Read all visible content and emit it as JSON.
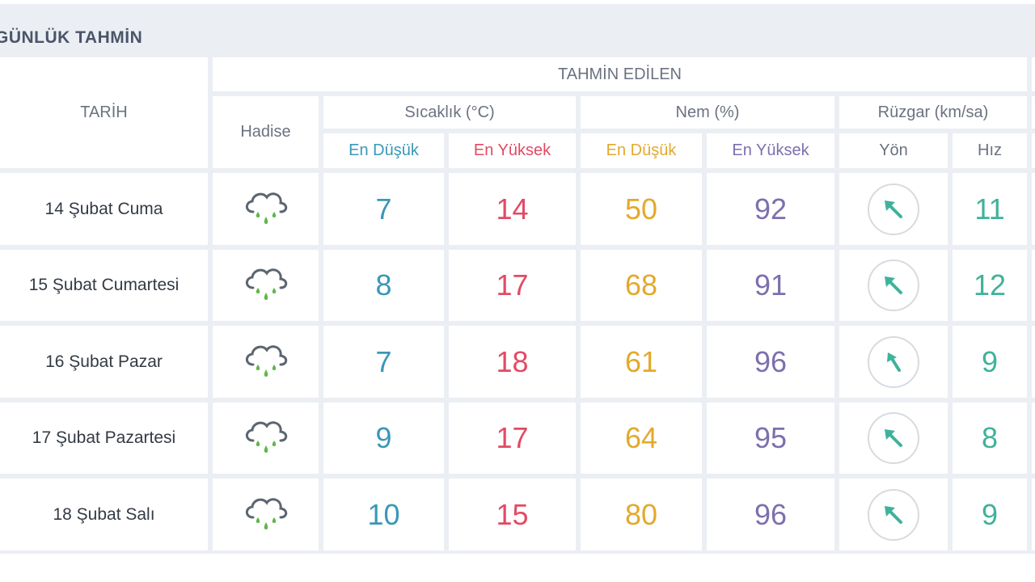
{
  "section_title": "GÜNLÜK TAHMİN",
  "headers": {
    "date": "TARİH",
    "forecast_group": "TAHMİN EDİLEN",
    "event": "Hadise",
    "temperature": "Sıcaklık (°C)",
    "humidity": "Nem (%)",
    "wind": "Rüzgar (km/sa)",
    "temp_min": "En Düşük",
    "temp_max": "En Yüksek",
    "hum_min": "En Düşük",
    "hum_max": "En Yüksek",
    "wind_dir": "Yön",
    "wind_speed": "Hız"
  },
  "colors": {
    "temp_min": "#3a97b8",
    "temp_max": "#e24a64",
    "hum_min": "#e3a92b",
    "hum_max": "#7d6fae",
    "wind": "#3fb29a",
    "grid": "#ebeef3"
  },
  "icons": {
    "event": "rain-cloud-icon",
    "wind_direction": "wind-arrow-northwest-icon"
  },
  "rows": [
    {
      "date": "14 Şubat Cuma",
      "temp_min": "7",
      "temp_max": "14",
      "hum_min": "50",
      "hum_max": "92",
      "wind_speed": "11"
    },
    {
      "date": "15 Şubat Cumartesi",
      "temp_min": "8",
      "temp_max": "17",
      "hum_min": "68",
      "hum_max": "91",
      "wind_speed": "12"
    },
    {
      "date": "16 Şubat Pazar",
      "temp_min": "7",
      "temp_max": "18",
      "hum_min": "61",
      "hum_max": "96",
      "wind_speed": "9"
    },
    {
      "date": "17 Şubat Pazartesi",
      "temp_min": "9",
      "temp_max": "17",
      "hum_min": "64",
      "hum_max": "95",
      "wind_speed": "8"
    },
    {
      "date": "18 Şubat Salı",
      "temp_min": "10",
      "temp_max": "15",
      "hum_min": "80",
      "hum_max": "96",
      "wind_speed": "9"
    }
  ]
}
